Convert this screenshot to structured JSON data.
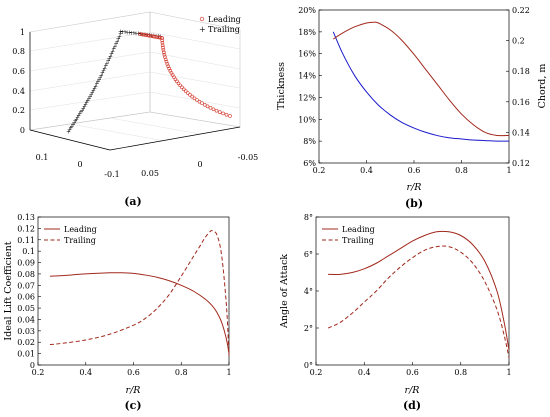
{
  "chart_data": [
    {
      "id": "a",
      "type": "scatter",
      "caption": "(a)",
      "projection": "3d",
      "legend": [
        "Leading",
        "Trailing"
      ],
      "legend_position": "top-right",
      "z_ticks": [
        "0",
        "0.2",
        "0.4",
        "0.6",
        "0.8",
        "1"
      ],
      "x_ticks": [
        "0.1",
        "0",
        "-0.1"
      ],
      "y_ticks": [
        "0.05",
        "0",
        "-0.05"
      ],
      "grid": true,
      "colors": {
        "leading": "#d33b2f",
        "trailing": "#111111"
      }
    },
    {
      "id": "b",
      "type": "line",
      "caption": "(b)",
      "xlabel": "r/R",
      "ylabel": "Thickness",
      "ylabel_right": "Chord, m",
      "xlim": [
        0.2,
        1.0
      ],
      "ylim": [
        0.06,
        0.2
      ],
      "ylim_right": [
        0.12,
        0.22
      ],
      "x_ticks": [
        "0.2",
        "0.4",
        "0.6",
        "0.8",
        "1"
      ],
      "y_ticks": [
        "6%",
        "8%",
        "10%",
        "12%",
        "14%",
        "16%",
        "18%",
        "20%"
      ],
      "y_ticks_right": [
        "0.12",
        "0.14",
        "0.16",
        "0.18",
        "0.2",
        "0.22"
      ],
      "grid": false,
      "colors": {
        "left_axis": "#0000cc",
        "right_axis": "#b02418"
      },
      "series": [
        {
          "axis": "left",
          "color": "#1a1acc",
          "x": [
            0.26,
            0.3,
            0.35,
            0.4,
            0.45,
            0.5,
            0.55,
            0.6,
            0.65,
            0.7,
            0.75,
            0.8,
            0.85,
            0.9,
            0.95,
            1.0
          ],
          "y": [
            0.18,
            0.16,
            0.14,
            0.125,
            0.113,
            0.104,
            0.097,
            0.092,
            0.088,
            0.085,
            0.083,
            0.082,
            0.081,
            0.0805,
            0.08,
            0.08
          ]
        },
        {
          "axis": "right",
          "color": "#a0281c",
          "x": [
            0.26,
            0.3,
            0.35,
            0.4,
            0.43,
            0.45,
            0.5,
            0.55,
            0.6,
            0.65,
            0.7,
            0.75,
            0.8,
            0.85,
            0.9,
            0.95,
            1.0
          ],
          "y": [
            0.201,
            0.205,
            0.209,
            0.2115,
            0.212,
            0.2115,
            0.207,
            0.2,
            0.191,
            0.181,
            0.171,
            0.161,
            0.152,
            0.145,
            0.14,
            0.138,
            0.138
          ]
        }
      ]
    },
    {
      "id": "c",
      "type": "line",
      "caption": "(c)",
      "xlabel": "r/R",
      "ylabel": "Ideal Lift Coefficient",
      "xlim": [
        0.2,
        1.0
      ],
      "ylim": [
        0.0,
        0.13
      ],
      "x_ticks": [
        "0.2",
        "0.4",
        "0.6",
        "0.8",
        "1"
      ],
      "y_ticks": [
        "0",
        "0.01",
        "0.02",
        "0.03",
        "0.04",
        "0.05",
        "0.06",
        "0.07",
        "0.08",
        "0.09",
        "0.1",
        "0.11",
        "0.12",
        "0.13"
      ],
      "legend_position": "top-left",
      "series": [
        {
          "name": "Leading",
          "style": "solid",
          "color": "#a0281c",
          "x": [
            0.25,
            0.3,
            0.4,
            0.5,
            0.55,
            0.6,
            0.65,
            0.7,
            0.75,
            0.8,
            0.85,
            0.9,
            0.93,
            0.95,
            0.97,
            0.99,
            1.0
          ],
          "y": [
            0.078,
            0.0785,
            0.08,
            0.081,
            0.081,
            0.0805,
            0.079,
            0.077,
            0.074,
            0.07,
            0.065,
            0.058,
            0.052,
            0.046,
            0.037,
            0.022,
            0.01
          ]
        },
        {
          "name": "Trailing",
          "style": "dashed",
          "color": "#a0281c",
          "x": [
            0.25,
            0.3,
            0.4,
            0.5,
            0.6,
            0.65,
            0.7,
            0.75,
            0.8,
            0.85,
            0.88,
            0.9,
            0.92,
            0.93,
            0.95,
            0.97,
            0.99,
            1.0
          ],
          "y": [
            0.018,
            0.019,
            0.022,
            0.027,
            0.035,
            0.041,
            0.05,
            0.062,
            0.078,
            0.095,
            0.105,
            0.112,
            0.117,
            0.118,
            0.114,
            0.095,
            0.05,
            0.008
          ]
        }
      ]
    },
    {
      "id": "d",
      "type": "line",
      "caption": "(d)",
      "xlabel": "r/R",
      "ylabel": "Angle of Attack",
      "xlim": [
        0.2,
        1.0
      ],
      "ylim": [
        0,
        8
      ],
      "x_ticks": [
        "0.2",
        "0.4",
        "0.6",
        "0.8",
        "1"
      ],
      "y_ticks": [
        "0°",
        "2°",
        "4°",
        "6°",
        "8°"
      ],
      "legend_position": "top-left",
      "series": [
        {
          "name": "Leading",
          "style": "solid",
          "color": "#a0281c",
          "x": [
            0.25,
            0.3,
            0.35,
            0.4,
            0.45,
            0.5,
            0.55,
            0.6,
            0.65,
            0.7,
            0.75,
            0.8,
            0.85,
            0.9,
            0.95,
            0.98,
            1.0
          ],
          "y": [
            4.9,
            4.9,
            5.0,
            5.2,
            5.5,
            5.9,
            6.3,
            6.7,
            7.0,
            7.2,
            7.2,
            7.0,
            6.5,
            5.6,
            4.0,
            2.3,
            0.8
          ]
        },
        {
          "name": "Trailing",
          "style": "dashed",
          "color": "#a0281c",
          "x": [
            0.25,
            0.3,
            0.35,
            0.4,
            0.45,
            0.5,
            0.55,
            0.6,
            0.65,
            0.7,
            0.75,
            0.8,
            0.85,
            0.9,
            0.95,
            0.98,
            1.0
          ],
          "y": [
            2.0,
            2.3,
            2.8,
            3.4,
            4.0,
            4.7,
            5.3,
            5.8,
            6.2,
            6.4,
            6.4,
            6.1,
            5.5,
            4.5,
            3.0,
            1.6,
            0.4
          ]
        }
      ]
    }
  ]
}
